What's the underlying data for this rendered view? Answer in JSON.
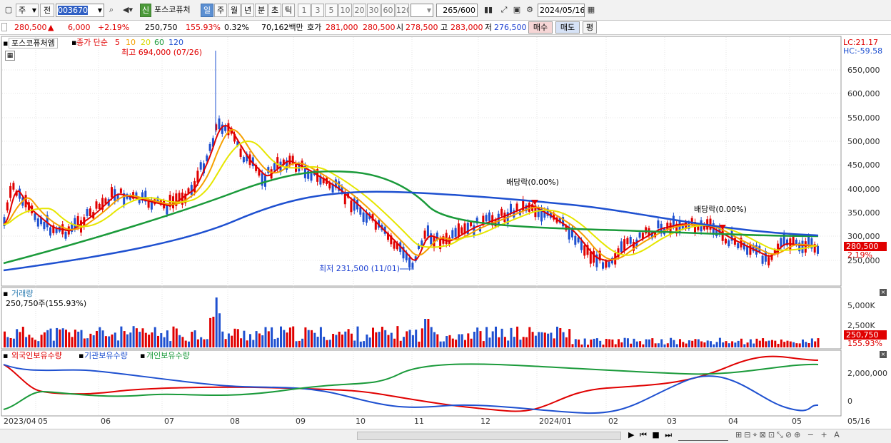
{
  "toolbar": {
    "market": "주",
    "prefix": "전",
    "code": "003670",
    "credit_badge": "신",
    "name": "포스코퓨처",
    "periods": [
      "일",
      "주",
      "월",
      "년",
      "분",
      "초",
      "틱"
    ],
    "selected_period": "일",
    "intervals": [
      "1",
      "3",
      "5",
      "10",
      "20",
      "30",
      "60",
      "120"
    ],
    "count": "265",
    "count_total": "/600",
    "date": "2024/05/16"
  },
  "quote": {
    "price": "280,500",
    "arrow": "▲",
    "change": "6,000",
    "change_pct": "+2.19%",
    "volume": "250,750",
    "volume_pct": "155.93%",
    "turnover_pct": "0.32%",
    "amount": "70,162백만",
    "bid_label": "호가",
    "bid": "281,000",
    "ask": "280,500",
    "open_label": "시",
    "open": "278,500",
    "high_label": "고",
    "high": "283,000",
    "low_label": "저",
    "low": "276,500",
    "buy": "매수",
    "sell": "매도",
    "avg": "평"
  },
  "price_panel": {
    "title": "포스코퓨처엠",
    "ma_label": "종가 단순",
    "ma": [
      {
        "p": "5",
        "color": "#e00000"
      },
      {
        "p": "10",
        "color": "#f5a000"
      },
      {
        "p": "20",
        "color": "#e6e600"
      },
      {
        "p": "60",
        "color": "#1a9a3a"
      },
      {
        "p": "120",
        "color": "#1e50d0"
      }
    ],
    "lc": "LC:21.17",
    "hc": "HC:-59.58",
    "high_note": "최고 694,000 (07/26)",
    "low_note": "최저 231,500 (11/01)",
    "dividend1": "배당락(0.00%)",
    "dividend2": "배당락(0.00%)",
    "yticks": [
      "650,000",
      "600,000",
      "550,000",
      "500,000",
      "450,000",
      "400,000",
      "350,000",
      "300,000",
      "250,000"
    ],
    "price_tag": "280,500",
    "pct_tag": "2.19%"
  },
  "volume_panel": {
    "title": "거래량",
    "info": "250,750주(155.93%)",
    "yticks": [
      "5,000K",
      "2,500K"
    ],
    "tag": "250,750",
    "pct_tag": "155.93%"
  },
  "holding_panel": {
    "series": [
      {
        "name": "외국인보유수량",
        "color": "#e00000"
      },
      {
        "name": "기관보유수량",
        "color": "#1e50d0"
      },
      {
        "name": "개인보유수량",
        "color": "#1a9a3a"
      }
    ],
    "yticks": [
      "2,000,000",
      "0"
    ]
  },
  "xaxis": [
    "2023/04",
    "05",
    "06",
    "07",
    "08",
    "09",
    "10",
    "11",
    "12",
    "2024/01",
    "02",
    "03",
    "04",
    "05"
  ],
  "xaxis_end": "05/16"
}
